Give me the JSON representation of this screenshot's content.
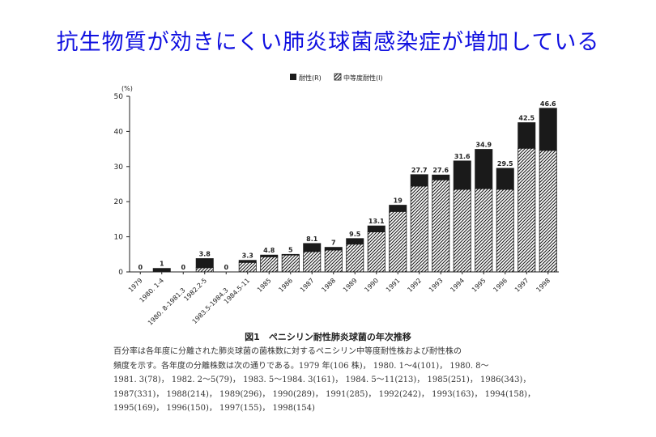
{
  "slide": {
    "title": "抗生物質が効きにくい肺炎球菌感染症が増加している"
  },
  "chart_data": {
    "type": "bar",
    "stacked": true,
    "y_unit": "(%)",
    "ylim": [
      0,
      50
    ],
    "yticks": [
      0,
      10,
      20,
      30,
      40,
      50
    ],
    "legend_position": "top-center",
    "categories": [
      "1979",
      "1980. 1-4",
      "1980. 8-1981.3",
      "1982.2-5",
      "1983.5-1984.3",
      "1984.5-11",
      "1985",
      "1986",
      "1987",
      "1988",
      "1989",
      "1990",
      "1991",
      "1992",
      "1993",
      "1994",
      "1995",
      "1996",
      "1997",
      "1998"
    ],
    "totals": [
      0,
      1,
      0,
      3.8,
      0,
      3.3,
      4.8,
      5,
      8.1,
      7,
      9.5,
      13.1,
      19,
      27.7,
      27.6,
      31.6,
      34.9,
      29.5,
      42.5,
      46.6
    ],
    "total_labels": [
      "0",
      "1",
      "0",
      "3.8",
      "0",
      "3.3",
      "4.8",
      "5",
      "8.1",
      "7",
      "9.5",
      "13.1",
      "19",
      "27.7",
      "27.6",
      "31.6",
      "34.9",
      "29.5",
      "42.5",
      "46.6"
    ],
    "series": [
      {
        "name": "中等度耐性(I)",
        "pattern": "hatched",
        "values": [
          0,
          0,
          0,
          1.2,
          0,
          2.7,
          4.3,
          4.8,
          5.8,
          6.2,
          7.9,
          11.4,
          17.2,
          24.4,
          26.2,
          23.5,
          23.7,
          23.5,
          35.2,
          34.6
        ]
      },
      {
        "name": "耐性(R)",
        "pattern": "solid",
        "values": [
          0,
          1,
          0,
          2.6,
          0,
          0.6,
          0.5,
          0.2,
          2.3,
          0.8,
          1.6,
          1.7,
          1.8,
          3.3,
          1.4,
          8.1,
          11.2,
          6.0,
          7.3,
          12.0
        ]
      }
    ],
    "colors": {
      "solid": "#1a1a1a",
      "hatch": "#1a1a1a",
      "axis": "#222222"
    }
  },
  "figure": {
    "caption": "図1　ペニシリン耐性肺炎球菌の年次推移",
    "note_lines": [
      "百分率は各年度に分離された肺炎球菌の菌株数に対するペニシリン中等度耐性株および耐性株の",
      "頻度を示す。各年度の分離株数は次の通りである。1979 年(106 株)， 1980. 1～4(101)， 1980. 8～",
      "1981. 3(78)， 1982. 2～5(79)， 1983. 5～1984. 3(161)， 1984. 5～11(213)， 1985(251)， 1986(343)，",
      "1987(331)， 1988(214)， 1989(296)， 1990(289)， 1991(285)， 1992(242)， 1993(163)， 1994(158)，",
      "1995(169)， 1996(150)， 1997(155)， 1998(154)"
    ]
  }
}
